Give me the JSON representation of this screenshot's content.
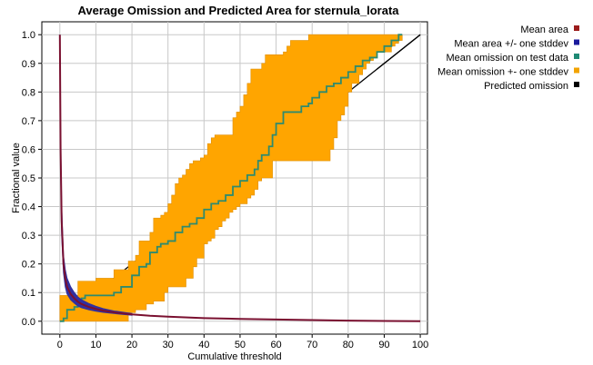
{
  "chart_data": {
    "type": "line",
    "title": "Average Omission and Predicted Area for sternula_lorata",
    "xlabel": "Cumulative threshold",
    "ylabel": "Fractional value",
    "xlim": [
      -5,
      102
    ],
    "ylim": [
      -0.045,
      1.045
    ],
    "x_ticks": [
      "0",
      "10",
      "20",
      "30",
      "40",
      "50",
      "60",
      "70",
      "80",
      "90",
      "100"
    ],
    "y_ticks": [
      "0.0",
      "0.1",
      "0.2",
      "0.3",
      "0.4",
      "0.5",
      "0.6",
      "0.7",
      "0.8",
      "0.9",
      "1.0"
    ],
    "grid": true,
    "legend_position": "right",
    "legend": [
      {
        "name": "Mean area",
        "color": "#9b1c1c"
      },
      {
        "name": "Mean area +/- one stddev",
        "color": "#1a1a9c"
      },
      {
        "name": "Mean omission on test data",
        "color": "#1e8a74"
      },
      {
        "name": "Mean omission +- one stddev",
        "color": "#f2a300"
      },
      {
        "name": "Predicted omission",
        "color": "#000000"
      }
    ],
    "colors": {
      "mean_area": "#7a1030",
      "area_band": "#3030a0",
      "omission": "#2e8b6e",
      "omission_band": "#ffa500",
      "predicted": "#000000",
      "grid": "#c8c8c8"
    },
    "series": [
      {
        "name": "Predicted omission",
        "x": [
          0,
          100
        ],
        "y": [
          0,
          1
        ]
      },
      {
        "name": "Mean omission +- one stddev",
        "x_upper": [
          0,
          1,
          2,
          3,
          4,
          5,
          6,
          7,
          8,
          9,
          10,
          11,
          12,
          13,
          14,
          15,
          16,
          17,
          18,
          19,
          20,
          21,
          22,
          23,
          24,
          25,
          26,
          27,
          28,
          29,
          30,
          31,
          32,
          33,
          34,
          35,
          36,
          37,
          38,
          39,
          40,
          41,
          42,
          43,
          44,
          45,
          46,
          47,
          48,
          49,
          50,
          51,
          52,
          53,
          54,
          55,
          56,
          57,
          58,
          59,
          60,
          61,
          62,
          63,
          64,
          65,
          66,
          67,
          68,
          69,
          70,
          71,
          72,
          73,
          74,
          75,
          76,
          77,
          78,
          79,
          80,
          81,
          82,
          83,
          84,
          85,
          86,
          87,
          88,
          89,
          90,
          91,
          92,
          93,
          94,
          95
        ],
        "upper": [
          0.09,
          0.09,
          0.09,
          0.09,
          0.09,
          0.14,
          0.14,
          0.14,
          0.14,
          0.14,
          0.15,
          0.15,
          0.15,
          0.15,
          0.15,
          0.18,
          0.18,
          0.18,
          0.18,
          0.21,
          0.21,
          0.23,
          0.28,
          0.28,
          0.28,
          0.31,
          0.36,
          0.36,
          0.37,
          0.38,
          0.41,
          0.44,
          0.48,
          0.5,
          0.51,
          0.53,
          0.55,
          0.56,
          0.56,
          0.57,
          0.58,
          0.62,
          0.64,
          0.65,
          0.65,
          0.65,
          0.65,
          0.65,
          0.71,
          0.73,
          0.75,
          0.79,
          0.83,
          0.88,
          0.88,
          0.88,
          0.9,
          0.93,
          0.93,
          0.93,
          0.93,
          0.93,
          0.94,
          0.96,
          0.98,
          0.98,
          0.98,
          0.98,
          0.98,
          1,
          1,
          1,
          1,
          1,
          1,
          1,
          1,
          1,
          1,
          1,
          1,
          1,
          1,
          1,
          1,
          1,
          1,
          1,
          1,
          1,
          1,
          1,
          1,
          1,
          1,
          1
        ],
        "x_lower": [
          0,
          1,
          2,
          3,
          4,
          5,
          6,
          7,
          8,
          9,
          10,
          11,
          12,
          13,
          14,
          15,
          16,
          17,
          18,
          19,
          20,
          21,
          22,
          23,
          24,
          25,
          26,
          27,
          28,
          29,
          30,
          31,
          32,
          33,
          34,
          35,
          36,
          37,
          38,
          39,
          40,
          41,
          42,
          43,
          44,
          45,
          46,
          47,
          48,
          49,
          50,
          51,
          52,
          53,
          54,
          55,
          56,
          57,
          58,
          59,
          60,
          61,
          62,
          63,
          64,
          65,
          66,
          67,
          68,
          69,
          70,
          71,
          72,
          73,
          74,
          75,
          76,
          77,
          78,
          79,
          80,
          81,
          82,
          83,
          84,
          85,
          86,
          87,
          88,
          89,
          90,
          91,
          92,
          93,
          94,
          95
        ],
        "lower": [
          0,
          0,
          0,
          0,
          0,
          0,
          0,
          0,
          0,
          0,
          0,
          0,
          0,
          0,
          0,
          0,
          0,
          0,
          0,
          0.03,
          0.03,
          0.04,
          0.04,
          0.04,
          0.06,
          0.06,
          0.07,
          0.07,
          0.07,
          0.1,
          0.12,
          0.12,
          0.12,
          0.12,
          0.12,
          0.15,
          0.15,
          0.19,
          0.22,
          0.22,
          0.27,
          0.28,
          0.29,
          0.32,
          0.33,
          0.35,
          0.36,
          0.38,
          0.39,
          0.4,
          0.41,
          0.41,
          0.43,
          0.44,
          0.46,
          0.49,
          0.5,
          0.5,
          0.5,
          0.56,
          0.56,
          0.56,
          0.56,
          0.56,
          0.56,
          0.56,
          0.56,
          0.56,
          0.56,
          0.56,
          0.56,
          0.56,
          0.56,
          0.56,
          0.56,
          0.6,
          0.64,
          0.7,
          0.72,
          0.75,
          0.8,
          0.83,
          0.83,
          0.86,
          0.88,
          0.9,
          0.91,
          0.92,
          0.94,
          0.94,
          0.94,
          0.94,
          0.96,
          0.97,
          0.98,
          1
        ]
      },
      {
        "name": "Mean omission on test data",
        "x": [
          0,
          1,
          2,
          4,
          5,
          6,
          7,
          10,
          15,
          17,
          20,
          22,
          24,
          25,
          27,
          28,
          30,
          32,
          34,
          36,
          38,
          40,
          42,
          44,
          46,
          48,
          50,
          52,
          54,
          55,
          56,
          58,
          59,
          60,
          62,
          64,
          66,
          67,
          69,
          70,
          72,
          74,
          76,
          78,
          80,
          82,
          84,
          86,
          88,
          90,
          92,
          94,
          95
        ],
        "y": [
          0,
          0.01,
          0.04,
          0.05,
          0.06,
          0.08,
          0.09,
          0.09,
          0.1,
          0.12,
          0.16,
          0.19,
          0.2,
          0.24,
          0.26,
          0.27,
          0.28,
          0.31,
          0.33,
          0.34,
          0.36,
          0.39,
          0.41,
          0.42,
          0.44,
          0.47,
          0.49,
          0.51,
          0.53,
          0.56,
          0.58,
          0.61,
          0.65,
          0.69,
          0.73,
          0.73,
          0.73,
          0.75,
          0.76,
          0.78,
          0.8,
          0.82,
          0.83,
          0.85,
          0.87,
          0.89,
          0.91,
          0.92,
          0.94,
          0.96,
          0.98,
          1,
          1
        ]
      },
      {
        "name": "Mean area",
        "x": [
          0,
          0.2,
          0.5,
          1,
          1.5,
          2,
          3,
          4,
          5,
          6,
          8,
          10,
          12,
          15,
          20,
          25,
          30,
          40,
          50,
          60,
          70,
          80,
          90,
          100
        ],
        "y": [
          1,
          0.6,
          0.35,
          0.2,
          0.15,
          0.12,
          0.095,
          0.08,
          0.068,
          0.06,
          0.05,
          0.043,
          0.037,
          0.031,
          0.024,
          0.019,
          0.016,
          0.011,
          0.008,
          0.006,
          0.004,
          0.002,
          0.001,
          0
        ]
      },
      {
        "name": "Mean area +/- one stddev",
        "x": [
          0,
          0.2,
          0.5,
          1,
          1.5,
          2,
          3,
          4,
          5,
          6,
          8,
          10,
          12,
          15,
          20
        ],
        "upper": [
          1,
          0.65,
          0.4,
          0.23,
          0.18,
          0.15,
          0.12,
          0.1,
          0.085,
          0.075,
          0.062,
          0.052,
          0.044,
          0.036,
          0.027
        ],
        "lower": [
          1,
          0.55,
          0.3,
          0.17,
          0.12,
          0.095,
          0.075,
          0.063,
          0.053,
          0.047,
          0.04,
          0.035,
          0.031,
          0.027,
          0.021
        ]
      }
    ]
  }
}
